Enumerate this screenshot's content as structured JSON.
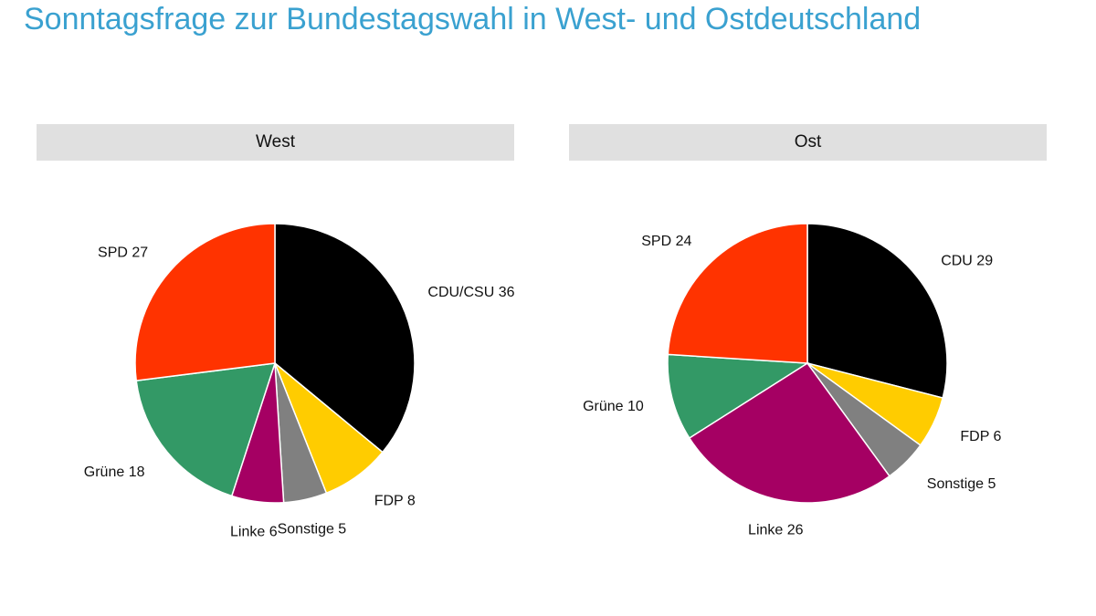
{
  "page": {
    "title": "Sonntagsfrage zur Bundestagswahl in West- und Ostdeutschland"
  },
  "chart_data": [
    {
      "type": "pie",
      "title": "West",
      "slices": [
        {
          "label": "CDU/CSU",
          "value": 36,
          "color": "#000000"
        },
        {
          "label": "FDP",
          "value": 8,
          "color": "#ffcc00"
        },
        {
          "label": "Sonstige",
          "value": 5,
          "color": "#808080"
        },
        {
          "label": "Linke",
          "value": 6,
          "color": "#a50063"
        },
        {
          "label": "Grüne",
          "value": 18,
          "color": "#339966"
        },
        {
          "label": "SPD",
          "value": 27,
          "color": "#ff3300"
        }
      ],
      "start": "12 o'clock",
      "direction": "clockwise"
    },
    {
      "type": "pie",
      "title": "Ost",
      "slices": [
        {
          "label": "CDU",
          "value": 29,
          "color": "#000000"
        },
        {
          "label": "FDP",
          "value": 6,
          "color": "#ffcc00"
        },
        {
          "label": "Sonstige",
          "value": 5,
          "color": "#808080"
        },
        {
          "label": "Linke",
          "value": 26,
          "color": "#a50063"
        },
        {
          "label": "Grüne",
          "value": 10,
          "color": "#339966"
        },
        {
          "label": "SPD",
          "value": 24,
          "color": "#ff3300"
        }
      ],
      "start": "12 o'clock",
      "direction": "clockwise"
    }
  ]
}
